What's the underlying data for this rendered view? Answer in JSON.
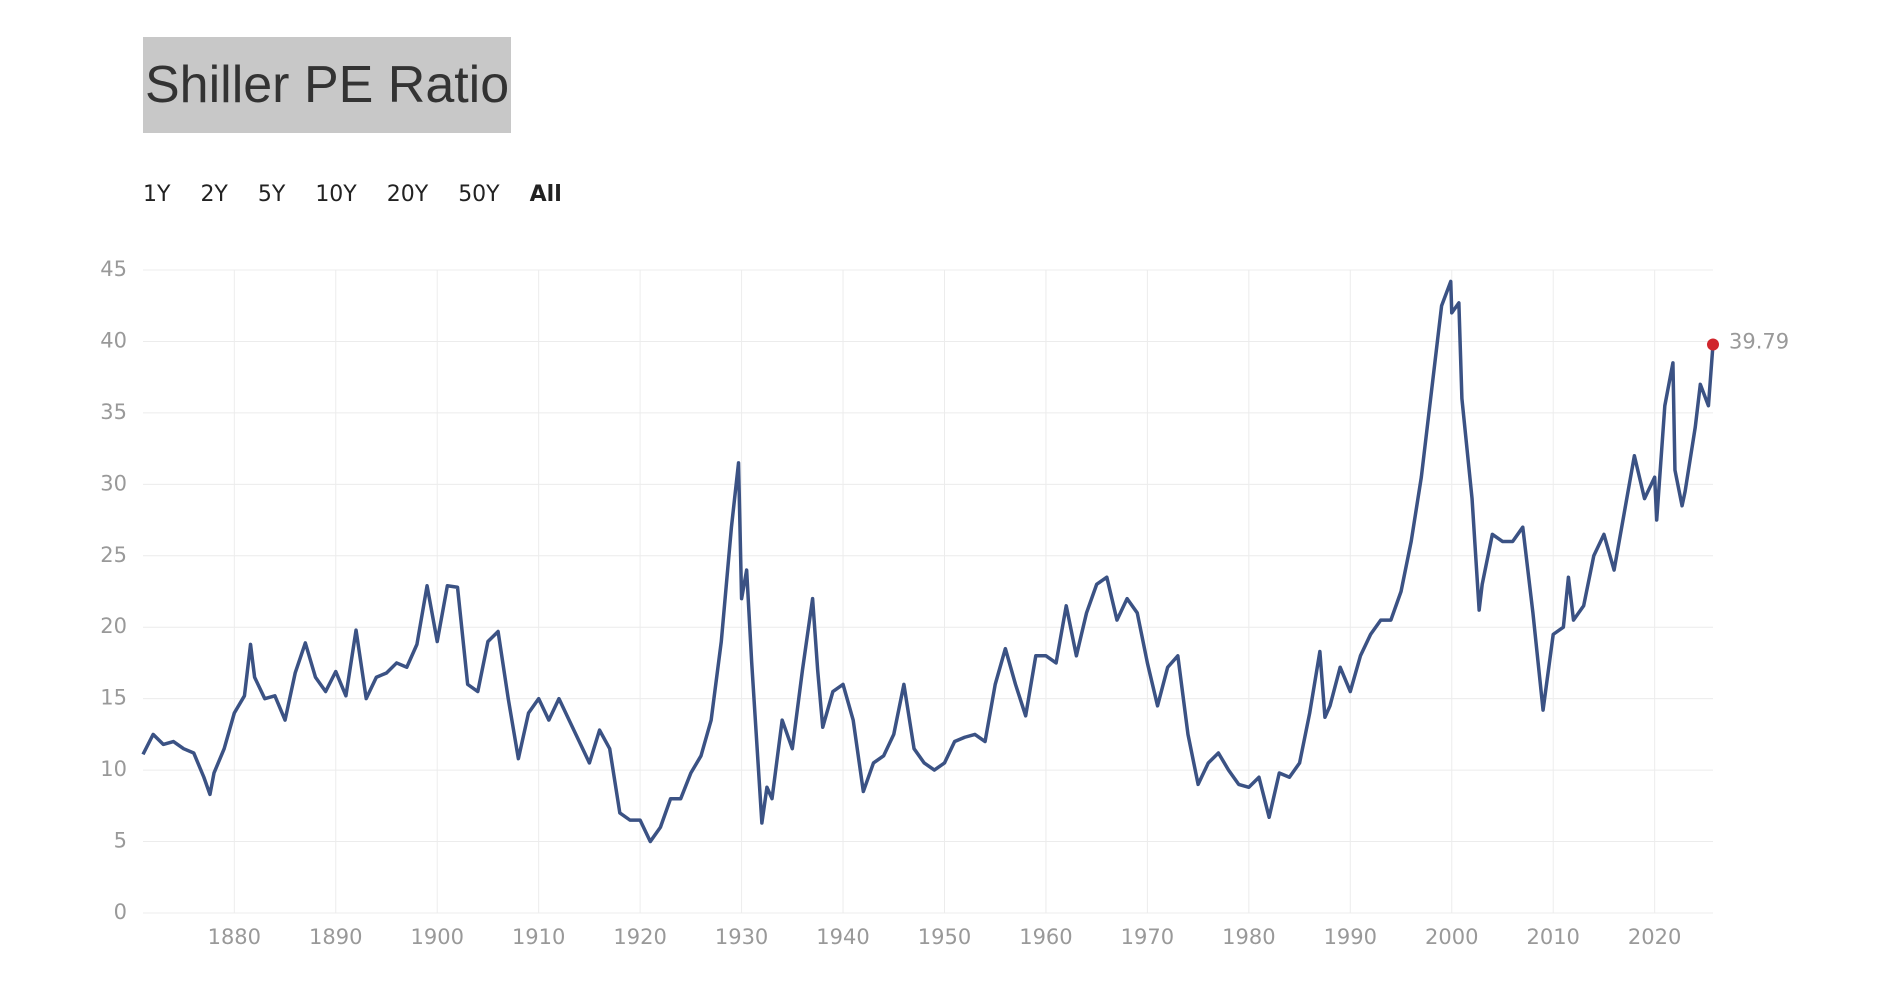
{
  "chart_data": {
    "type": "line",
    "title": "Shiller PE Ratio",
    "range_options": [
      "1Y",
      "2Y",
      "5Y",
      "10Y",
      "20Y",
      "50Y",
      "All"
    ],
    "active_range": "All",
    "color": "#3b5284",
    "last_point_color": "#d0262d",
    "x": [
      1871,
      1872,
      1873,
      1874,
      1875,
      1876,
      1877,
      1877.6,
      1878,
      1879,
      1880,
      1881,
      1881.6,
      1882,
      1883,
      1884,
      1885,
      1886,
      1887,
      1888,
      1889,
      1890,
      1891,
      1892,
      1893,
      1894,
      1895,
      1896,
      1897,
      1898,
      1899,
      1900,
      1901,
      1902,
      1903,
      1904,
      1905,
      1906,
      1907,
      1908,
      1909,
      1910,
      1911,
      1912,
      1913,
      1914,
      1915,
      1916,
      1917,
      1918,
      1919,
      1920,
      1921,
      1922,
      1923,
      1924,
      1925,
      1926,
      1927,
      1928,
      1929,
      1929.7,
      1930,
      1930.5,
      1931,
      1932,
      1932.5,
      1933,
      1934,
      1935,
      1936,
      1937,
      1937.5,
      1938,
      1939,
      1940,
      1941,
      1942,
      1943,
      1944,
      1945,
      1946,
      1947,
      1948,
      1949,
      1950,
      1951,
      1952,
      1953,
      1954,
      1955,
      1956,
      1957,
      1958,
      1959,
      1960,
      1961,
      1962,
      1963,
      1964,
      1965,
      1966,
      1967,
      1968,
      1969,
      1970,
      1971,
      1972,
      1973,
      1974,
      1975,
      1976,
      1977,
      1978,
      1979,
      1980,
      1981,
      1982,
      1983,
      1984,
      1985,
      1986,
      1987,
      1987.5,
      1988,
      1989,
      1990,
      1991,
      1992,
      1993,
      1994,
      1995,
      1996,
      1997,
      1998,
      1999,
      1999.9,
      2000,
      2000.7,
      2001,
      2002,
      2002.7,
      2003,
      2004,
      2005,
      2006,
      2007,
      2008,
      2009,
      2010,
      2011,
      2011.5,
      2012,
      2013,
      2014,
      2015,
      2016,
      2017,
      2018,
      2019,
      2020,
      2020.2,
      2021,
      2021.8,
      2022,
      2022.7,
      2023,
      2024,
      2024.5,
      2025.3,
      2025.75
    ],
    "values": [
      11.1,
      12.5,
      11.8,
      12.0,
      11.5,
      11.2,
      9.5,
      8.3,
      9.8,
      11.5,
      14.0,
      15.2,
      18.8,
      16.5,
      15.0,
      15.2,
      13.5,
      16.8,
      18.9,
      16.5,
      15.5,
      16.9,
      15.2,
      19.8,
      15.0,
      16.5,
      16.8,
      17.5,
      17.2,
      18.8,
      22.9,
      19.0,
      22.9,
      22.8,
      16.0,
      15.5,
      19.0,
      19.7,
      15.0,
      10.8,
      14.0,
      15.0,
      13.5,
      15.0,
      13.5,
      12.0,
      10.5,
      12.8,
      11.5,
      7.0,
      6.5,
      6.5,
      5.0,
      6.0,
      8.0,
      8.0,
      9.8,
      11.0,
      13.5,
      19.0,
      27.0,
      31.5,
      22.0,
      24.0,
      17.5,
      6.3,
      8.8,
      8.0,
      13.5,
      11.5,
      17.0,
      22.0,
      17.0,
      13.0,
      15.5,
      16.0,
      13.5,
      8.5,
      10.5,
      11.0,
      12.5,
      16.0,
      11.5,
      10.5,
      10.0,
      10.5,
      12.0,
      12.3,
      12.5,
      12.0,
      16.0,
      18.5,
      16.0,
      13.8,
      18.0,
      18.0,
      17.5,
      21.5,
      18.0,
      21.0,
      23.0,
      23.5,
      20.5,
      22.0,
      21.0,
      17.5,
      14.5,
      17.2,
      18.0,
      12.5,
      9.0,
      10.5,
      11.2,
      10.0,
      9.0,
      8.8,
      9.5,
      6.7,
      9.8,
      9.5,
      10.5,
      14.0,
      18.3,
      13.7,
      14.5,
      17.2,
      15.5,
      18.0,
      19.5,
      20.5,
      20.5,
      22.5,
      26.0,
      30.5,
      36.5,
      42.5,
      44.2,
      42.0,
      42.7,
      36.0,
      29.0,
      21.2,
      23.0,
      26.5,
      26.0,
      26.0,
      27.0,
      21.0,
      14.2,
      19.5,
      20.0,
      23.5,
      20.5,
      21.5,
      25.0,
      26.5,
      24.0,
      28.0,
      32.0,
      29.0,
      30.5,
      27.5,
      35.5,
      38.5,
      31.0,
      28.5,
      29.5,
      34.0,
      37.0,
      35.5,
      39.79
    ],
    "xlim": [
      1871,
      2025.75
    ],
    "xticks": [
      1880,
      1890,
      1900,
      1910,
      1920,
      1930,
      1940,
      1950,
      1960,
      1970,
      1980,
      1990,
      2000,
      2010,
      2020
    ],
    "ylim": [
      0,
      45
    ],
    "yticks": [
      0,
      5,
      10,
      15,
      20,
      25,
      30,
      35,
      40,
      45
    ],
    "grid": true
  }
}
